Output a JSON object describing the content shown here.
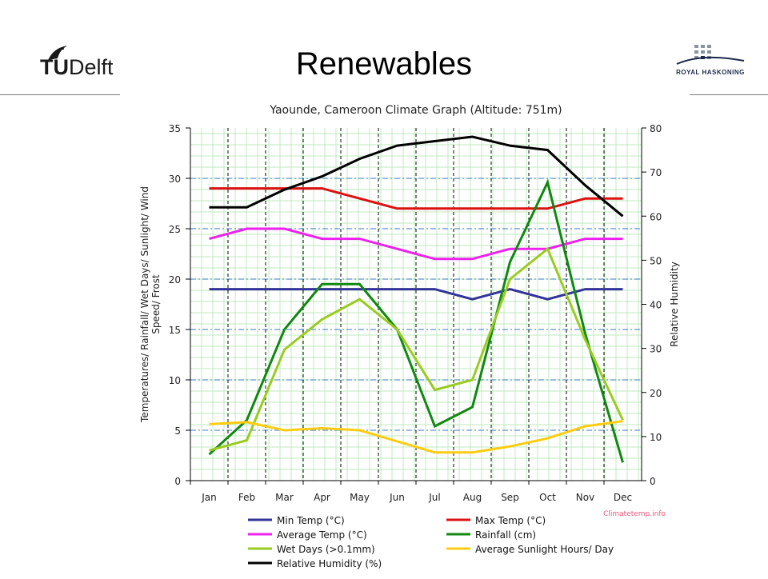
{
  "slide": {
    "title": "Renewables"
  },
  "logos": {
    "left": {
      "text_tu": "TU",
      "text_rest": "Delft",
      "icon": "flame-icon"
    },
    "right": {
      "text": "ROYAL HASKONING",
      "icon": "dot-grid-icon"
    }
  },
  "chart_data": {
    "type": "line",
    "title": "Yaounde, Cameroon Climate Graph (Altitude: 751m)",
    "categories": [
      "Jan",
      "Feb",
      "Mar",
      "Apr",
      "May",
      "Jun",
      "Jul",
      "Aug",
      "Sep",
      "Oct",
      "Nov",
      "Dec"
    ],
    "ylabel_left": "Temperatures/ Rainfall/ Wet Days/ Sunlight/ Wind Speed/ Frost",
    "ylabel_right": "Relative Humidity",
    "ylim_left": [
      0,
      35
    ],
    "ylim_right": [
      0,
      80
    ],
    "yticks_left": [
      0,
      5,
      10,
      15,
      20,
      25,
      30,
      35
    ],
    "yticks_right": [
      0,
      10,
      20,
      30,
      40,
      50,
      60,
      70,
      80
    ],
    "source": "Climatetemp.info",
    "grid": true,
    "legend_position": "bottom",
    "series": [
      {
        "name": "Min Temp (°C)",
        "axis": "left",
        "color": "#333399",
        "values": [
          19,
          19,
          19,
          19,
          19,
          19,
          19,
          18,
          19,
          18,
          19,
          19
        ]
      },
      {
        "name": "Max Temp (°C)",
        "axis": "left",
        "color": "#dd1111",
        "values": [
          29,
          29,
          29,
          29,
          28,
          27,
          27,
          27,
          27,
          27,
          28,
          28
        ]
      },
      {
        "name": "Average Temp (°C)",
        "axis": "left",
        "color": "#ee22ee",
        "values": [
          24,
          25,
          25,
          24,
          24,
          23,
          22,
          22,
          23,
          23,
          24,
          24
        ]
      },
      {
        "name": "Rainfall (cm)",
        "axis": "left",
        "color": "#118811",
        "values": [
          2.6,
          6.0,
          15.0,
          19.5,
          19.5,
          15.0,
          5.4,
          7.3,
          21.7,
          29.6,
          14.6,
          1.8
        ]
      },
      {
        "name": "Wet Days (>0.1mm)",
        "axis": "left",
        "color": "#99cc22",
        "values": [
          3,
          4,
          13,
          16,
          18,
          15,
          9,
          10,
          20,
          23,
          14,
          6
        ]
      },
      {
        "name": "Average Sunlight Hours/ Day",
        "axis": "left",
        "color": "#ffcc11",
        "values": [
          5.6,
          5.8,
          5.0,
          5.2,
          5.0,
          3.9,
          2.8,
          2.8,
          3.4,
          4.2,
          5.4,
          5.9
        ]
      },
      {
        "name": "Relative Humidity (%)",
        "axis": "right",
        "color": "#000000",
        "values": [
          62,
          62,
          66,
          69,
          73,
          76,
          77,
          78,
          76,
          75,
          67,
          60
        ]
      }
    ]
  }
}
